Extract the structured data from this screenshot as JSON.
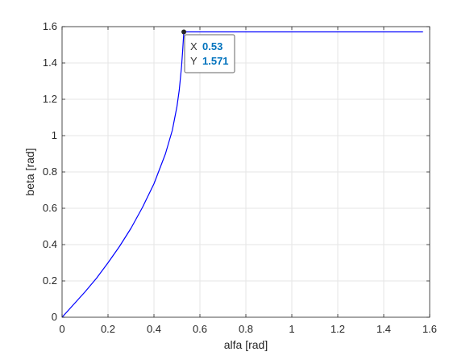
{
  "chart_data": {
    "type": "line",
    "title": "",
    "xlabel": "alfa [rad]",
    "ylabel": "beta [rad]",
    "xlim": [
      0,
      1.6
    ],
    "ylim": [
      0,
      1.6
    ],
    "xticks": [
      "0",
      "0.2",
      "0.4",
      "0.6",
      "0.8",
      "1",
      "1.2",
      "1.4",
      "1.6"
    ],
    "yticks": [
      "0",
      "0.2",
      "0.4",
      "0.6",
      "0.8",
      "1",
      "1.2",
      "1.4",
      "1.6"
    ],
    "grid": true,
    "legend": "none",
    "series": [
      {
        "color": "#0000ff",
        "x": [
          0,
          0.05,
          0.1,
          0.15,
          0.2,
          0.25,
          0.3,
          0.35,
          0.4,
          0.45,
          0.48,
          0.5,
          0.51,
          0.52,
          0.525,
          0.53,
          1.571
        ],
        "y": [
          0,
          0.07,
          0.14,
          0.215,
          0.3,
          0.39,
          0.49,
          0.605,
          0.735,
          0.9,
          1.03,
          1.16,
          1.25,
          1.38,
          1.47,
          1.571,
          1.571
        ]
      }
    ],
    "datatip": {
      "x_key": "X",
      "x_value": "0.53",
      "y_key": "Y",
      "y_value": "1.571",
      "x": 0.53,
      "y": 1.571
    },
    "colors": {
      "line": "#0000ff",
      "grid": "#e6e6e6",
      "axis": "#262626",
      "tip_value": "#0072bd",
      "tip_border": "#666666"
    }
  }
}
